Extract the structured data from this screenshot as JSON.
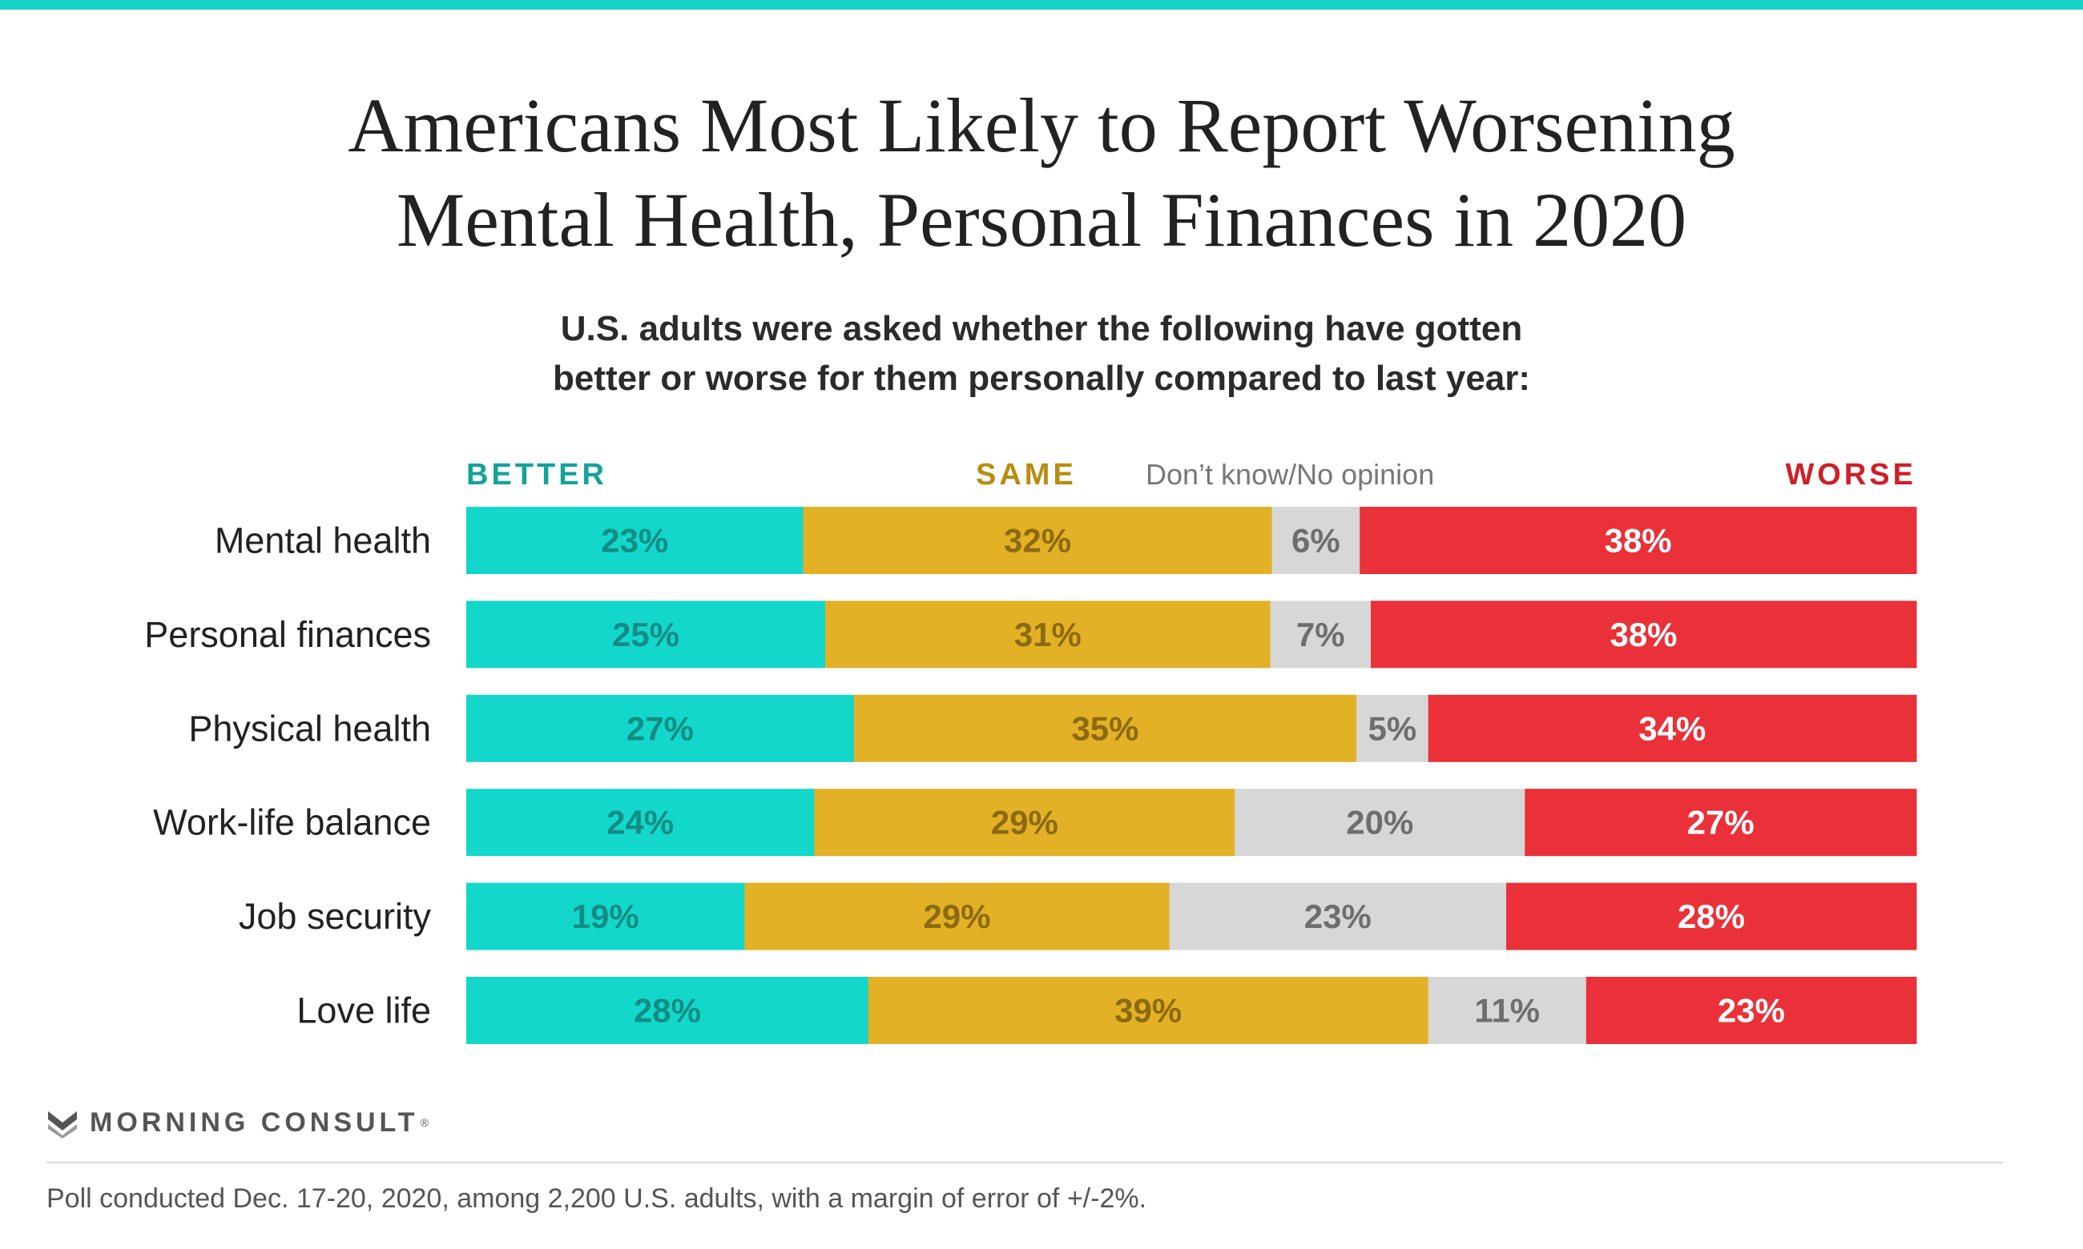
{
  "title_lines": [
    "Americans Most Likely to Report Worsening",
    "Mental Health, Personal Finances in 2020"
  ],
  "subtitle_lines": [
    "U.S. adults were asked whether the following have gotten",
    "better or worse for them personally compared to last year:"
  ],
  "legend": {
    "better": "BETTER",
    "same": "SAME",
    "dont_know": "Don’t know/No opinion",
    "worse": "WORSE"
  },
  "colors": {
    "better": "#14d7cb",
    "same": "#e3b126",
    "dont_know": "#d7d7d7",
    "worse": "#ea3038",
    "better_text": "#128c84",
    "same_text": "#8c6a10",
    "dont_know_text": "#6e6e6e",
    "worse_text": "#ffffff",
    "better_legend": "#14a39a",
    "same_legend": "#b88d12",
    "worse_legend": "#cf1f28",
    "accent_bar": "#14d2c6"
  },
  "chart_data": {
    "type": "bar",
    "orientation": "horizontal",
    "stacked": true,
    "value_unit": "%",
    "categories": [
      "Mental health",
      "Personal finances",
      "Physical health",
      "Work-life balance",
      "Job security",
      "Love life"
    ],
    "series": [
      {
        "name": "BETTER",
        "values": [
          23,
          25,
          27,
          24,
          19,
          28
        ]
      },
      {
        "name": "SAME",
        "values": [
          32,
          31,
          35,
          29,
          29,
          39
        ]
      },
      {
        "name": "Don’t know/No opinion",
        "values": [
          6,
          7,
          5,
          20,
          23,
          11
        ]
      },
      {
        "name": "WORSE",
        "values": [
          38,
          38,
          34,
          27,
          28,
          23
        ]
      }
    ],
    "xlim": [
      0,
      100
    ],
    "legend": "top",
    "grid": false
  },
  "brand": {
    "name": "MORNING CONSULT",
    "mark": "®"
  },
  "footnote": "Poll conducted Dec. 17-20, 2020, among 2,200 U.S. adults, with a margin of error of +/-2%."
}
